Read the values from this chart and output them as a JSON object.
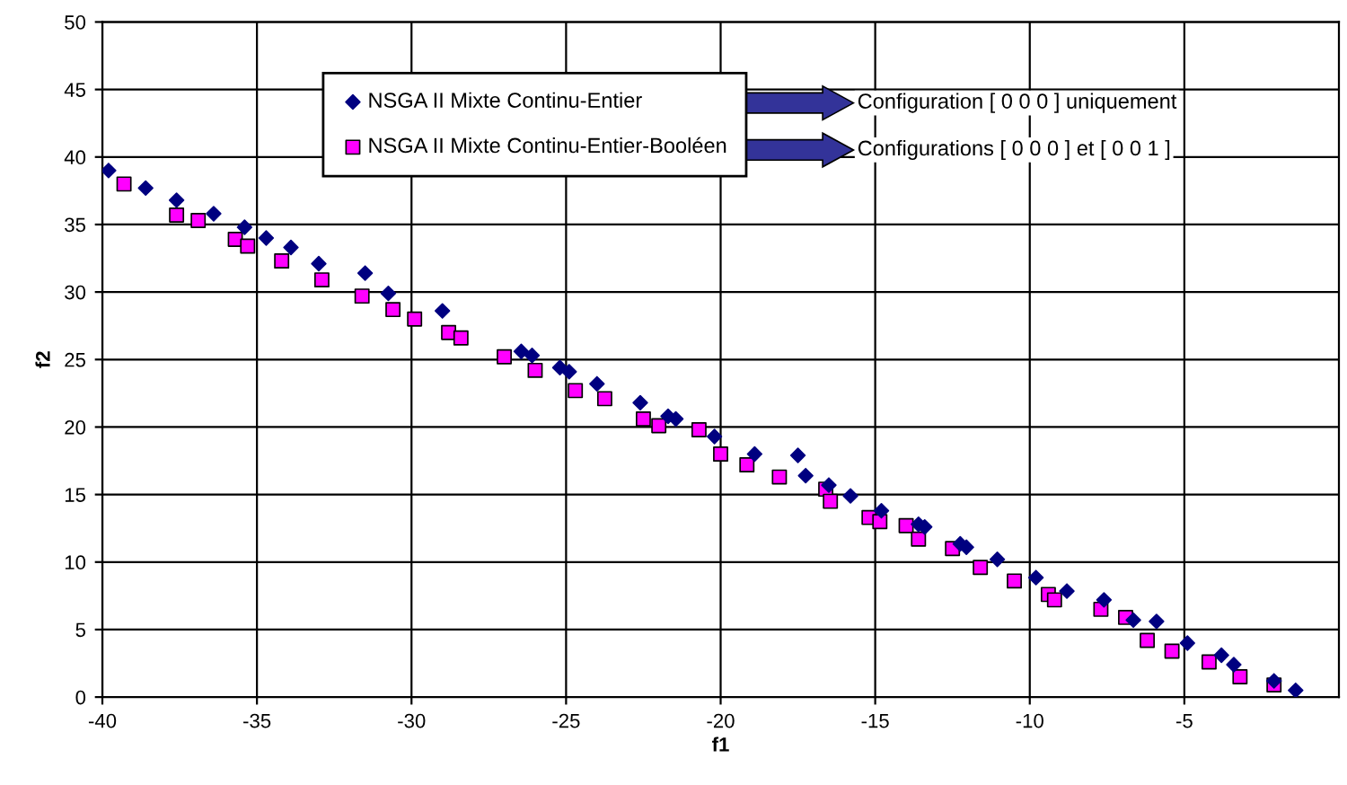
{
  "chart_data": {
    "type": "scatter",
    "xlabel": "f1",
    "ylabel": "f2",
    "xlim": [
      -40,
      0
    ],
    "xticks": [
      -40,
      -35,
      -30,
      -25,
      -20,
      -15,
      -10,
      -5
    ],
    "ylim": [
      0,
      50
    ],
    "yticks": [
      0,
      5,
      10,
      15,
      20,
      25,
      30,
      35,
      40,
      45,
      50
    ],
    "grid": true,
    "legend": "top",
    "annotations": [
      "Configuration [ 0 0 0 ] uniquement",
      "Configurations [ 0 0 0 ] et [ 0 0 1 ]"
    ],
    "series": [
      {
        "name": "NSGA II Mixte Continu-Entier",
        "color": "#000080",
        "marker": "diamond",
        "x": [
          -39.8,
          -38.6,
          -37.6,
          -36.4,
          -35.4,
          -34.7,
          -33.9,
          -33.0,
          -31.5,
          -30.75,
          -29.0,
          -26.45,
          -26.1,
          -25.2,
          -24.9,
          -24.0,
          -22.6,
          -21.7,
          -21.45,
          -20.2,
          -18.9,
          -17.5,
          -17.25,
          -16.5,
          -15.8,
          -14.8,
          -13.6,
          -13.4,
          -12.25,
          -12.05,
          -11.05,
          -9.8,
          -8.8,
          -7.6,
          -6.65,
          -5.9,
          -4.9,
          -3.8,
          -3.4,
          -2.1,
          -1.4
        ],
        "values": [
          39.0,
          37.7,
          36.8,
          35.8,
          34.8,
          34.0,
          33.3,
          32.1,
          31.4,
          29.9,
          28.6,
          25.6,
          25.3,
          24.4,
          24.1,
          23.2,
          21.8,
          20.8,
          20.6,
          19.3,
          18.0,
          17.9,
          16.4,
          15.7,
          14.9,
          13.8,
          12.8,
          12.6,
          11.35,
          11.1,
          10.2,
          8.85,
          7.85,
          7.2,
          5.7,
          5.6,
          4.0,
          3.1,
          2.4,
          1.2,
          0.5
        ]
      },
      {
        "name": "NSGA II Mixte Continu-Entier-Booléen",
        "color": "#ff00ff",
        "marker": "square",
        "x": [
          -39.3,
          -37.6,
          -36.9,
          -35.7,
          -35.3,
          -34.2,
          -32.9,
          -31.6,
          -30.6,
          -29.9,
          -28.8,
          -28.4,
          -27.0,
          -26.0,
          -24.7,
          -23.75,
          -22.5,
          -22.0,
          -20.7,
          -20.0,
          -19.15,
          -18.1,
          -16.6,
          -16.45,
          -15.2,
          -14.85,
          -14.0,
          -13.6,
          -12.5,
          -11.6,
          -10.5,
          -9.4,
          -9.2,
          -7.7,
          -6.9,
          -6.2,
          -5.4,
          -4.2,
          -3.2,
          -2.1
        ],
        "values": [
          38.0,
          35.7,
          35.3,
          33.9,
          33.4,
          32.3,
          30.9,
          29.7,
          28.7,
          28.0,
          27.0,
          26.6,
          25.2,
          24.2,
          22.7,
          22.1,
          20.6,
          20.1,
          19.8,
          18.0,
          17.2,
          16.3,
          15.4,
          14.5,
          13.3,
          13.0,
          12.7,
          11.7,
          11.0,
          9.6,
          8.6,
          7.6,
          7.2,
          6.5,
          5.9,
          4.2,
          3.4,
          2.6,
          1.5,
          0.9
        ]
      }
    ]
  }
}
